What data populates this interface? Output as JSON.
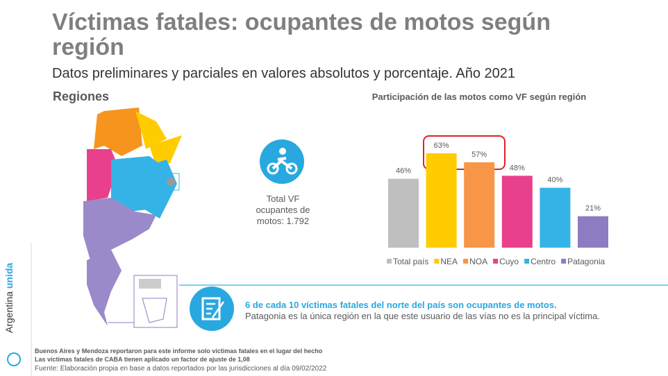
{
  "title": "Víctimas fatales: ocupantes de motos según región",
  "subtitle": "Datos preliminares y parciales en valores absolutos y porcentaje. Año 2021",
  "map_title": "Regiones",
  "stat": "Total VF ocupantes de motos: 1.792",
  "highlight": {
    "headline": "6 de cada 10 víctimas fatales del norte del país son ocupantes de motos.",
    "text": "Patagonia es la única región en la que este usuario de las vías no es la principal víctima."
  },
  "footnotes": [
    "Buenos Aires y Mendoza reportaron para este informe solo víctimas fatales en el lugar del hecho",
    "Las víctimas fatales de CABA tienen aplicado un factor de ajuste de 1,08",
    "Fuente: Elaboración propia en base a datos reportados por las jurisdicciones al día 09/02/2022"
  ],
  "brand": [
    "Argentina",
    "unida"
  ],
  "chart_data": {
    "type": "bar",
    "title": "Participación de las motos como VF según región",
    "categories": [
      "Total país",
      "NEA",
      "NOA",
      "Cuyo",
      "Centro",
      "Patagonia"
    ],
    "values": [
      46,
      63,
      57,
      48,
      40,
      21
    ],
    "value_labels": [
      "46%",
      "63%",
      "57%",
      "48%",
      "40%",
      "21%"
    ],
    "colors": [
      "#bfbfbf",
      "#ffcc00",
      "#f79646",
      "#e8408c",
      "#35b3e6",
      "#8e7cc3"
    ],
    "legend": "bottom"
  }
}
